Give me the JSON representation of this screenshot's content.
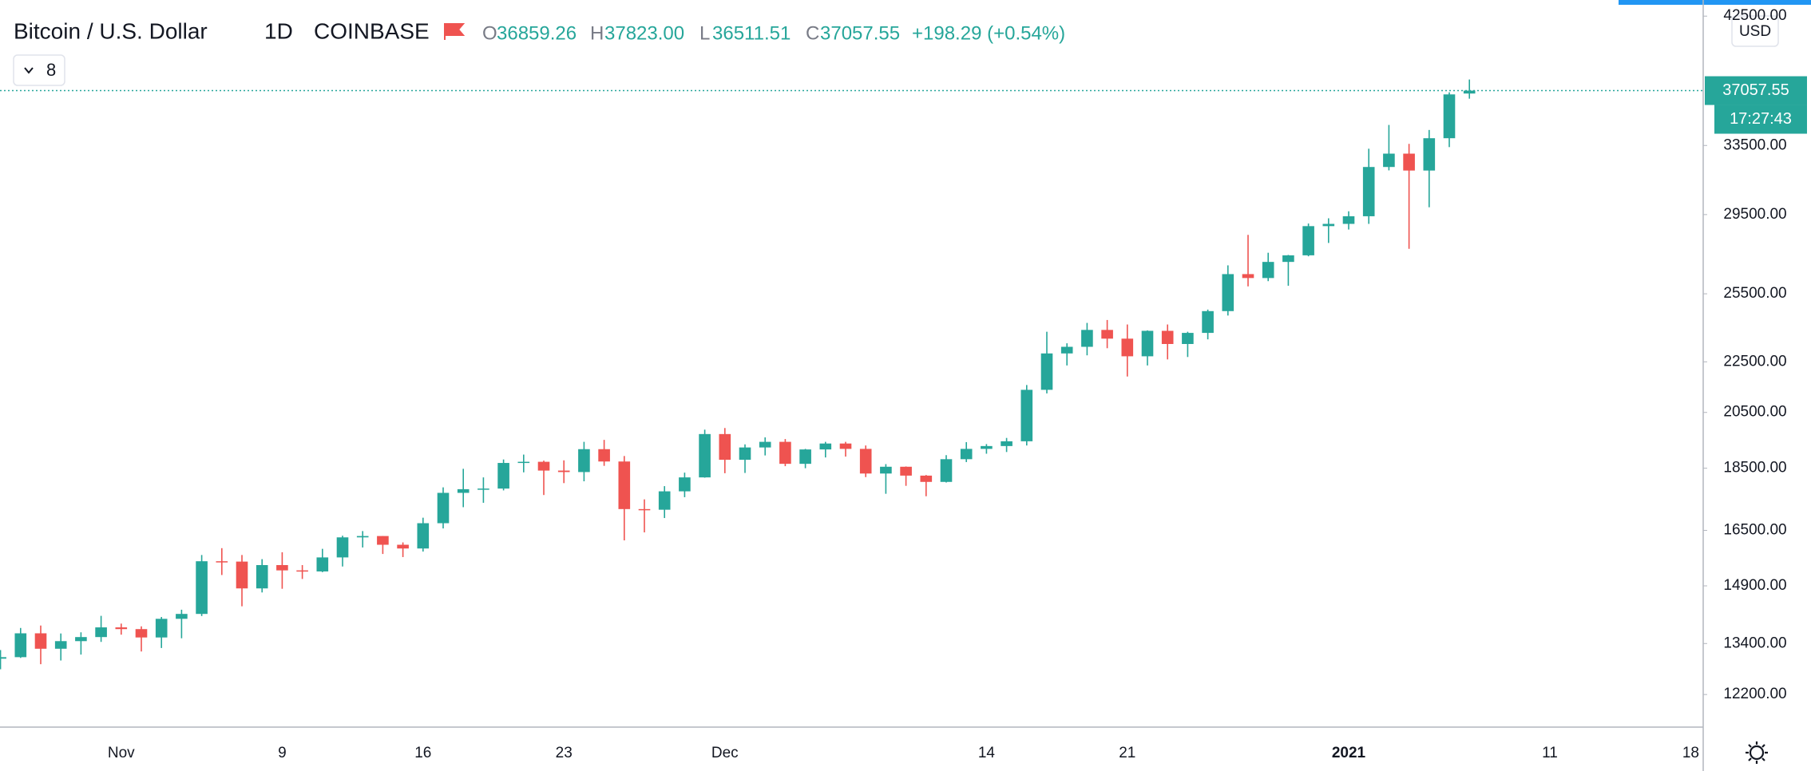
{
  "header": {
    "symbol": "Bitcoin / U.S. Dollar",
    "interval": "1D",
    "exchange": "COINBASE",
    "open_label": "O",
    "open": "36859.26",
    "high_label": "H",
    "high": "37823.00",
    "low_label": "L",
    "low": "36511.51",
    "close_label": "C",
    "close": "37057.55",
    "change": "+198.29 (+0.54%)",
    "indicators_count": "8",
    "currency": "USD",
    "countdown": "17:27:43"
  },
  "chart_data": {
    "type": "candlestick",
    "log": true,
    "grid": false,
    "up_color": "#26a69a",
    "down_color": "#ef5350",
    "categories": [
      null,
      null,
      null,
      null,
      null,
      null,
      "Nov",
      null,
      null,
      null,
      null,
      null,
      null,
      null,
      "9",
      null,
      null,
      null,
      null,
      null,
      null,
      "16",
      null,
      null,
      null,
      null,
      null,
      null,
      "23",
      null,
      null,
      null,
      null,
      null,
      null,
      null,
      "Dec",
      null,
      null,
      null,
      null,
      null,
      null,
      null,
      null,
      null,
      null,
      null,
      null,
      "14",
      null,
      null,
      null,
      null,
      null,
      null,
      "21",
      null,
      null,
      null,
      null,
      null,
      null,
      null,
      null,
      null,
      null,
      "2021",
      null,
      null,
      null,
      null,
      null,
      null,
      null,
      null,
      null,
      "11",
      null,
      null,
      null,
      null,
      null,
      null,
      "18"
    ],
    "open": [
      13031,
      13068,
      13654,
      13272,
      13459,
      13560,
      13804,
      13760,
      13550,
      14023,
      14150,
      15590,
      15580,
      14830,
      15480,
      15330,
      15300,
      15700,
      16290,
      16330,
      16070,
      15960,
      16720,
      17680,
      17800,
      17820,
      18680,
      18720,
      18420,
      18370,
      19160,
      18730,
      17160,
      17140,
      17730,
      18190,
      19700,
      18790,
      19220,
      19420,
      18650,
      19150,
      19360,
      19170,
      18320,
      18550,
      18250,
      18040,
      18810,
      19170,
      19270,
      19440,
      21370,
      22850,
      23130,
      23860,
      23480,
      22730,
      23820,
      23250,
      23730,
      24700,
      26440,
      26250,
      27040,
      27370,
      28880,
      29000,
      29410,
      32200,
      33000,
      31990,
      33950,
      36859.26,
      null,
      null,
      null,
      null,
      null,
      null,
      null,
      null,
      null,
      null,
      null
    ],
    "high": [
      13240,
      13789,
      13851,
      13650,
      13679,
      14100,
      13900,
      13830,
      14070,
      14260,
      15770,
      15970,
      15770,
      15650,
      15850,
      15480,
      15950,
      16340,
      16480,
      16330,
      16140,
      16890,
      17860,
      18480,
      18190,
      18800,
      18970,
      18760,
      18770,
      19420,
      19490,
      18920,
      17470,
      17900,
      18350,
      19860,
      19920,
      19330,
      19580,
      19520,
      19170,
      19420,
      19420,
      19290,
      18640,
      18560,
      18270,
      18950,
      19410,
      19340,
      19560,
      21560,
      23780,
      23280,
      24170,
      24300,
      24100,
      23840,
      24100,
      23780,
      24770,
      26870,
      28420,
      27500,
      27390,
      29020,
      29300,
      29680,
      33300,
      34790,
      33600,
      34470,
      36940,
      37823,
      null,
      null,
      null,
      null,
      null,
      null,
      null,
      null,
      null,
      null,
      null
    ],
    "low": [
      12780,
      13050,
      12900,
      12988,
      13130,
      13440,
      13620,
      13205,
      13290,
      13530,
      14095,
      15200,
      14350,
      14720,
      14820,
      15090,
      15280,
      15440,
      15990,
      15800,
      15710,
      15870,
      16560,
      17220,
      17360,
      17760,
      18360,
      17610,
      18000,
      18060,
      18580,
      16200,
      16440,
      16880,
      17540,
      18180,
      18330,
      18340,
      18940,
      18570,
      18500,
      18870,
      18900,
      18200,
      17650,
      17910,
      17570,
      18020,
      18710,
      19000,
      19060,
      19290,
      21230,
      22350,
      22770,
      23070,
      21900,
      22350,
      22600,
      22700,
      23450,
      24500,
      25850,
      26100,
      25880,
      27320,
      28000,
      28700,
      29000,
      32000,
      27700,
      29900,
      33400,
      36511.51,
      null,
      null,
      null,
      null,
      null,
      null,
      null,
      null,
      null,
      null,
      null
    ],
    "close": [
      13068,
      13654,
      13272,
      13459,
      13560,
      13804,
      13760,
      13550,
      14023,
      14150,
      15590,
      15580,
      14830,
      15480,
      15330,
      15300,
      15700,
      16290,
      16330,
      16070,
      15960,
      16720,
      17680,
      17800,
      17820,
      18680,
      18720,
      18420,
      18370,
      19160,
      18730,
      17160,
      17140,
      17730,
      18190,
      19700,
      18790,
      19220,
      19420,
      18650,
      19150,
      19360,
      19170,
      18320,
      18550,
      18250,
      18040,
      18810,
      19170,
      19270,
      19440,
      21370,
      22850,
      23130,
      23860,
      23480,
      22730,
      23820,
      23250,
      23730,
      24700,
      26440,
      26250,
      27040,
      27370,
      28880,
      29000,
      29410,
      32200,
      33000,
      31990,
      33950,
      36800,
      37057.55,
      null,
      null,
      null,
      null,
      null,
      null,
      null,
      null,
      null,
      null,
      null
    ],
    "ylim": [
      11490,
      43780
    ],
    "yticks": [
      {
        "value": 12200,
        "label": "12200.00"
      },
      {
        "value": 13400,
        "label": "13400.00"
      },
      {
        "value": 14900,
        "label": "14900.00"
      },
      {
        "value": 16500,
        "label": "16500.00"
      },
      {
        "value": 18500,
        "label": "18500.00"
      },
      {
        "value": 20500,
        "label": "20500.00"
      },
      {
        "value": 22500,
        "label": "22500.00"
      },
      {
        "value": 25500,
        "label": "25500.00"
      },
      {
        "value": 29500,
        "label": "29500.00"
      },
      {
        "value": 33500,
        "label": "33500.00"
      },
      {
        "value": 42500,
        "label": "42500.00"
      }
    ]
  }
}
